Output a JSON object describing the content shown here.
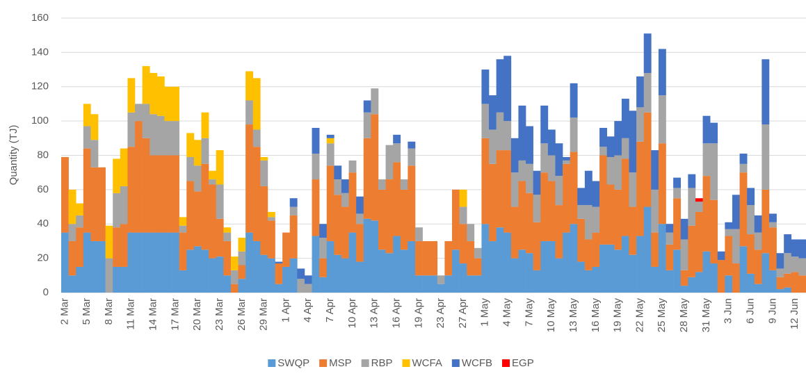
{
  "chart_data": {
    "type": "stacked-bar",
    "y_label": "Quantity (TJ)",
    "categories": [
      "2 Mar",
      null,
      null,
      "5 Mar",
      null,
      null,
      "8 Mar",
      null,
      null,
      "11 Mar",
      null,
      null,
      "14 Mar",
      null,
      null,
      "17 Mar",
      null,
      null,
      "20 Mar",
      null,
      null,
      "23 Mar",
      null,
      null,
      "26 Mar",
      null,
      null,
      "29 Mar",
      null,
      null,
      "1 Apr",
      null,
      null,
      "4 Apr",
      null,
      null,
      "7 Apr",
      null,
      null,
      "10 Apr",
      null,
      null,
      "13 Apr",
      null,
      null,
      "16 Apr",
      null,
      null,
      "19 Apr",
      null,
      null,
      "23 Apr",
      null,
      null,
      "27 Apr",
      null,
      null,
      "1 May",
      null,
      null,
      "4 May",
      null,
      null,
      "7 May",
      null,
      null,
      "10 May",
      null,
      null,
      "13 May",
      null,
      null,
      "16 May",
      null,
      null,
      "19 May",
      null,
      null,
      "22 May",
      null,
      null,
      "25 May",
      null,
      null,
      "28 May",
      null,
      null,
      "31 May",
      null,
      null,
      "3 Jun",
      null,
      null,
      "6 Jun",
      null,
      null,
      "9 Jun",
      null,
      null,
      "12 Jun",
      null
    ],
    "series": [
      {
        "name": "SWQP",
        "color": "#5b9bd5",
        "values": [
          35,
          10,
          15,
          35,
          30,
          30,
          0,
          15,
          15,
          35,
          35,
          35,
          35,
          35,
          35,
          35,
          13,
          25,
          27,
          25,
          20,
          21,
          10,
          0,
          8,
          35,
          30,
          22,
          20,
          5,
          15,
          20,
          0,
          0,
          33,
          9,
          30,
          22,
          20,
          35,
          18,
          43,
          42,
          25,
          23,
          33,
          25,
          30,
          10,
          10,
          10,
          5,
          10,
          25,
          17,
          10,
          10,
          40,
          30,
          38,
          35,
          20,
          25,
          23,
          13,
          30,
          30,
          20,
          35,
          40,
          18,
          13,
          15,
          28,
          28,
          25,
          33,
          22,
          33,
          50,
          15,
          40,
          13,
          25,
          4,
          9,
          12,
          24,
          17,
          0,
          10,
          0,
          27,
          11,
          5,
          23,
          13,
          2,
          3,
          0,
          0
        ]
      },
      {
        "name": "MSP",
        "color": "#ed7d31",
        "values": [
          44,
          20,
          23,
          49,
          43,
          43,
          0,
          23,
          25,
          50,
          65,
          55,
          45,
          45,
          45,
          45,
          22,
          40,
          32,
          50,
          43,
          22,
          20,
          5,
          8,
          63,
          55,
          40,
          22,
          12,
          20,
          25,
          0,
          0,
          33,
          11,
          44,
          35,
          30,
          35,
          22,
          47,
          62,
          35,
          43,
          43,
          35,
          44,
          20,
          20,
          20,
          0,
          20,
          35,
          23,
          20,
          10,
          50,
          45,
          45,
          48,
          30,
          40,
          35,
          28,
          40,
          35,
          31,
          40,
          42,
          25,
          18,
          20,
          52,
          35,
          35,
          45,
          28,
          55,
          55,
          20,
          47,
          15,
          30,
          9,
          30,
          35,
          44,
          37,
          19,
          23,
          17,
          43,
          23,
          20,
          37,
          25,
          7,
          8,
          12,
          10
        ]
      },
      {
        "name": "RBP",
        "color": "#a5a5a5",
        "values": [
          0,
          10,
          7,
          13,
          16,
          0,
          20,
          20,
          22,
          20,
          10,
          20,
          24,
          23,
          20,
          20,
          4,
          14,
          15,
          15,
          3,
          20,
          5,
          8,
          8,
          14,
          10,
          15,
          2,
          0,
          0,
          5,
          8,
          5,
          15,
          12,
          13,
          9,
          8,
          7,
          6,
          15,
          15,
          6,
          20,
          11,
          6,
          10,
          8,
          0,
          0,
          5,
          0,
          0,
          10,
          10,
          6,
          20,
          20,
          22,
          17,
          20,
          12,
          17,
          16,
          17,
          15,
          17,
          2,
          20,
          8,
          20,
          15,
          5,
          16,
          20,
          12,
          20,
          20,
          23,
          25,
          28,
          7,
          6,
          18,
          22,
          6,
          19,
          33,
          0,
          4,
          20,
          5,
          17,
          10,
          38,
          3,
          5,
          12,
          9,
          10
        ]
      },
      {
        "name": "WCFA",
        "color": "#ffc000",
        "values": [
          0,
          20,
          7,
          13,
          15,
          0,
          19,
          20,
          22,
          20,
          0,
          22,
          24,
          23,
          20,
          20,
          5,
          14,
          15,
          15,
          5,
          20,
          3,
          8,
          8,
          17,
          30,
          2,
          3,
          0,
          0,
          0,
          0,
          0,
          0,
          0,
          3,
          0,
          0,
          0,
          0,
          0,
          0,
          0,
          0,
          0,
          0,
          0,
          0,
          0,
          0,
          0,
          0,
          0,
          10,
          0,
          0,
          0,
          0,
          0,
          0,
          0,
          0,
          0,
          0,
          0,
          0,
          0,
          0,
          0,
          0,
          0,
          0,
          0,
          0,
          0,
          0,
          0,
          0,
          0,
          0,
          0,
          0,
          0,
          0,
          0,
          0,
          0,
          0,
          0,
          0,
          0,
          0,
          0,
          0,
          0,
          0,
          0,
          0,
          0,
          0
        ]
      },
      {
        "name": "WCFB",
        "color": "#4472c4",
        "values": [
          0,
          0,
          0,
          0,
          0,
          0,
          0,
          0,
          0,
          0,
          0,
          0,
          0,
          0,
          0,
          0,
          0,
          0,
          0,
          0,
          0,
          0,
          0,
          0,
          0,
          0,
          0,
          0,
          0,
          1,
          0,
          5,
          6,
          5,
          15,
          8,
          2,
          8,
          8,
          0,
          10,
          7,
          0,
          0,
          0,
          5,
          0,
          4,
          0,
          0,
          0,
          0,
          0,
          0,
          0,
          0,
          0,
          20,
          20,
          31,
          38,
          20,
          32,
          22,
          14,
          22,
          15,
          19,
          2,
          20,
          10,
          20,
          15,
          11,
          12,
          20,
          23,
          36,
          18,
          23,
          23,
          27,
          5,
          6,
          12,
          8,
          0,
          16,
          12,
          5,
          4,
          20,
          6,
          10,
          10,
          38,
          5,
          9,
          11,
          10,
          11
        ]
      },
      {
        "name": "EGP",
        "color": "#ff0000",
        "values": [
          0,
          0,
          0,
          0,
          0,
          0,
          0,
          0,
          0,
          0,
          0,
          0,
          0,
          0,
          0,
          0,
          0,
          0,
          0,
          0,
          0,
          0,
          0,
          0,
          0,
          0,
          0,
          0,
          0,
          0,
          0,
          0,
          0,
          0,
          0,
          0,
          0,
          0,
          0,
          0,
          0,
          0,
          0,
          0,
          0,
          0,
          0,
          0,
          0,
          0,
          0,
          0,
          0,
          0,
          0,
          0,
          0,
          0,
          0,
          0,
          0,
          0,
          0,
          0,
          0,
          0,
          0,
          0,
          0,
          0,
          0,
          0,
          0,
          0,
          0,
          0,
          0,
          0,
          0,
          0,
          0,
          0,
          0,
          0,
          0,
          0,
          2,
          0,
          0,
          0,
          0,
          0,
          0,
          0,
          0,
          0,
          0,
          0,
          0,
          0,
          0
        ]
      }
    ],
    "ylim": [
      0,
      160
    ],
    "yticks": [
      0,
      20,
      40,
      60,
      80,
      100,
      120,
      140,
      160
    ],
    "grid": true,
    "legend": "bottom"
  }
}
